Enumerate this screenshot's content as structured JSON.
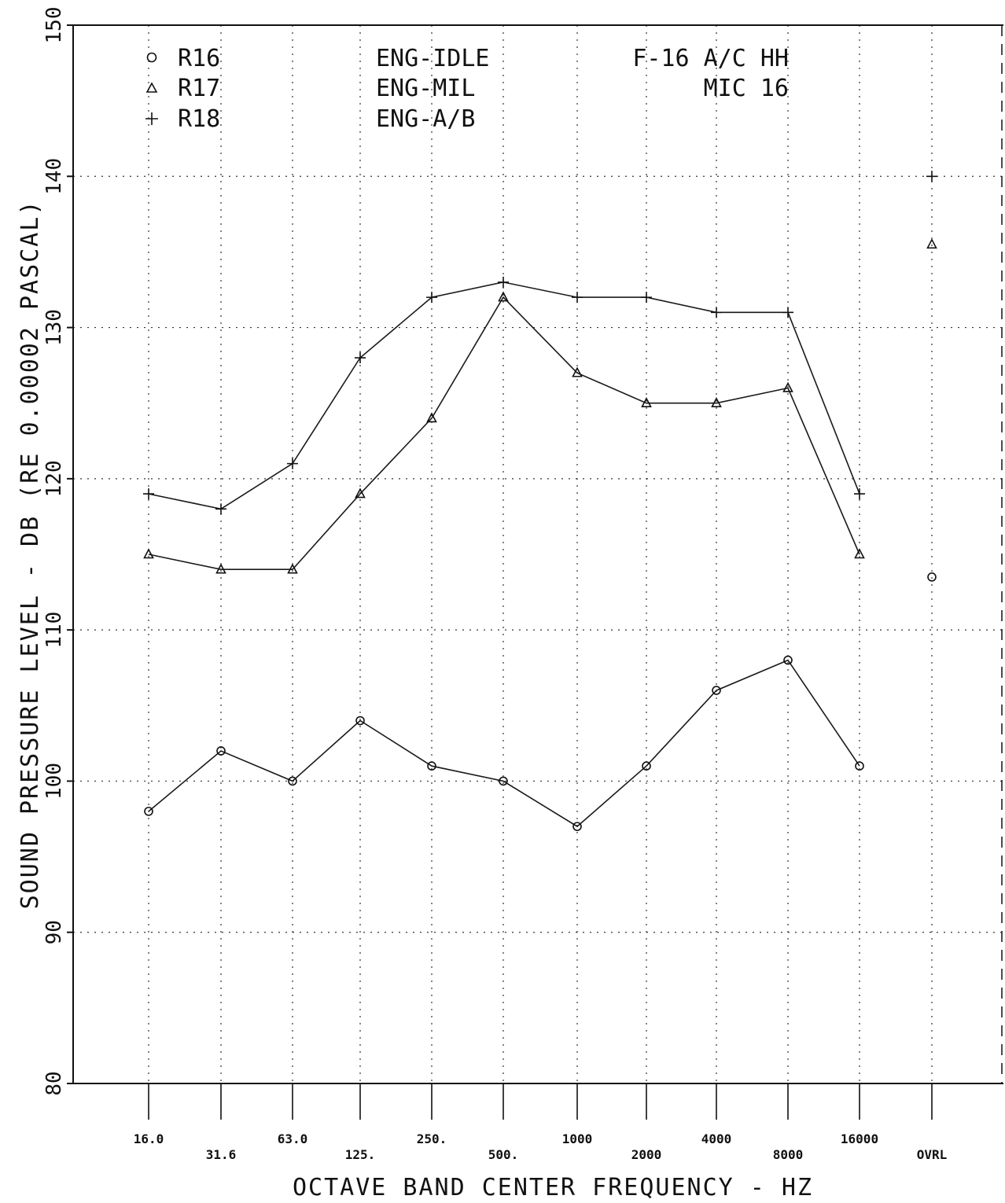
{
  "chart_data": {
    "type": "line",
    "ylabel": "SOUND PRESSURE LEVEL - DB (RE 0.00002 PASCAL)",
    "xlabel": "OCTAVE BAND CENTER FREQUENCY - HZ",
    "ylim": [
      80,
      150
    ],
    "yticks": [
      "80",
      "90",
      "100",
      "110",
      "120",
      "130",
      "140",
      "150"
    ],
    "categories": [
      "16.0",
      "31.6",
      "63.0",
      "125.",
      "250.",
      "500.",
      "1000",
      "2000",
      "4000",
      "8000",
      "16000",
      "OVRL"
    ],
    "grid": true,
    "series": [
      {
        "name": "R16",
        "condition": "ENG-IDLE",
        "marker": "circle",
        "values": [
          98,
          102,
          100,
          104,
          101,
          100,
          97,
          101,
          106,
          108,
          101,
          113.5
        ]
      },
      {
        "name": "R17",
        "condition": "ENG-MIL",
        "marker": "triangle",
        "values": [
          115,
          114,
          114,
          119,
          124,
          132,
          127,
          125,
          125,
          126,
          115,
          135.5
        ]
      },
      {
        "name": "R18",
        "condition": "ENG-A/B",
        "marker": "plus",
        "values": [
          119,
          118,
          121,
          128,
          132,
          133,
          132,
          132,
          131,
          131,
          119,
          140
        ]
      }
    ],
    "annotations": [
      "F-16 A/C HH",
      "MIC 16"
    ]
  }
}
